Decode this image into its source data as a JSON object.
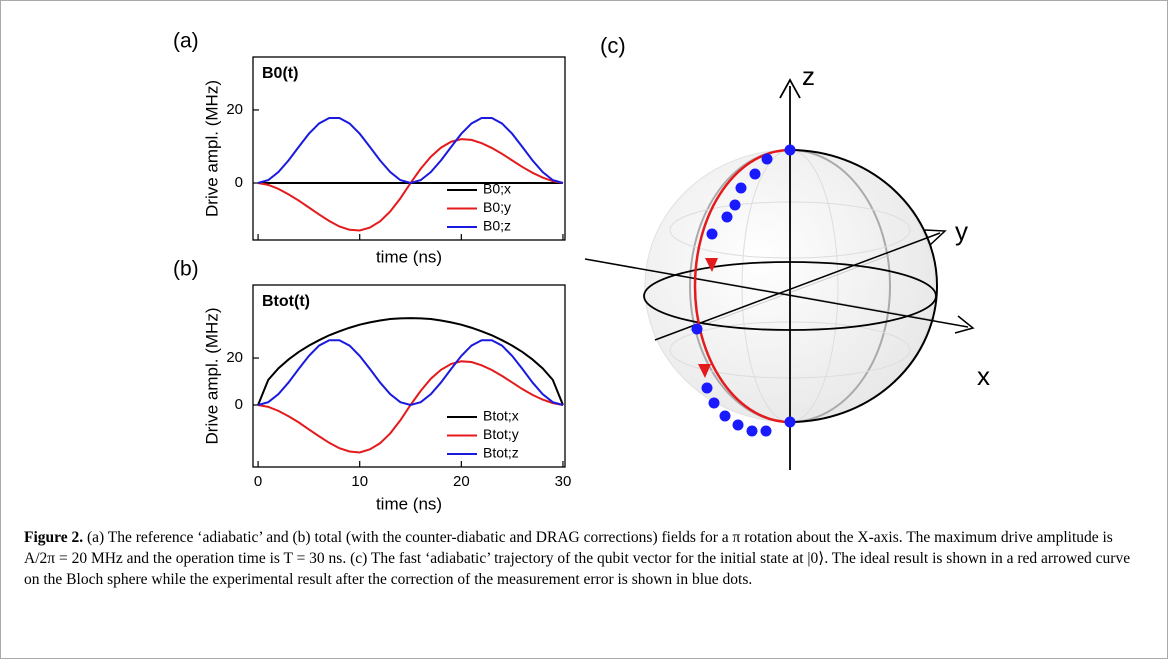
{
  "chart_data": [
    {
      "type": "line",
      "panel_label": "(a)",
      "title": "B0(t)",
      "y_label": "Drive ampl. (MHz)",
      "x_label": "time (ns)",
      "x": [
        0,
        1,
        2,
        3,
        4,
        5,
        6,
        7,
        8,
        9,
        10,
        11,
        12,
        13,
        14,
        15,
        16,
        17,
        18,
        19,
        20,
        21,
        22,
        23,
        24,
        25,
        26,
        27,
        28,
        29,
        30
      ],
      "series": [
        {
          "name": "B0;x",
          "color": "#000000",
          "values": [
            0,
            0,
            0,
            0,
            0,
            0,
            0,
            0,
            0,
            0,
            0,
            0,
            0,
            0,
            0,
            0,
            0,
            0,
            0,
            0,
            0,
            0,
            0,
            0,
            0,
            0,
            0,
            0,
            0,
            0,
            0
          ]
        },
        {
          "name": "B0;y",
          "color": "#e41a1c",
          "values": [
            0,
            -0.5,
            -1.6,
            -3.1,
            -4.8,
            -6.7,
            -8.6,
            -10.4,
            -11.9,
            -12.8,
            -13.0,
            -12.2,
            -10.5,
            -7.8,
            -4.2,
            0,
            3.9,
            7.2,
            9.7,
            11.3,
            12.0,
            11.8,
            10.9,
            9.6,
            8.0,
            6.2,
            4.4,
            2.8,
            1.5,
            0.5,
            0
          ]
        },
        {
          "name": "B0;z",
          "color": "#1a1adf",
          "values": [
            0,
            0.8,
            3.0,
            6.2,
            9.9,
            13.5,
            16.3,
            17.8,
            17.8,
            16.3,
            13.5,
            9.9,
            6.2,
            3.0,
            0.8,
            0,
            0.8,
            3.0,
            6.2,
            9.9,
            13.5,
            16.3,
            17.8,
            17.8,
            16.3,
            13.5,
            9.9,
            6.2,
            3.0,
            0.8,
            0
          ]
        }
      ],
      "xlim": [
        -0.5,
        30.2
      ],
      "xticks": [
        0,
        10,
        20,
        30
      ],
      "xtick_labels": false,
      "ylim": [
        -15.6,
        34.5
      ],
      "yticks": [
        0,
        20
      ]
    },
    {
      "type": "line",
      "panel_label": "(b)",
      "title": "Btot(t)",
      "y_label": "Drive ampl. (MHz)",
      "x_label": "time (ns)",
      "x": [
        0,
        1,
        2,
        3,
        4,
        5,
        6,
        7,
        8,
        9,
        10,
        11,
        12,
        13,
        14,
        15,
        16,
        17,
        18,
        19,
        20,
        21,
        22,
        23,
        24,
        25,
        26,
        27,
        28,
        29,
        30
      ],
      "series": [
        {
          "name": "Btot;x",
          "color": "#000000",
          "values": [
            0,
            10.7,
            15.6,
            19.4,
            22.6,
            25.3,
            27.6,
            29.7,
            31.4,
            32.9,
            34.2,
            35.2,
            36.0,
            36.6,
            36.9,
            37.0,
            36.9,
            36.6,
            36.0,
            35.2,
            34.2,
            32.9,
            31.4,
            29.7,
            27.6,
            25.3,
            22.6,
            19.4,
            15.6,
            10.7,
            0
          ]
        },
        {
          "name": "Btot;y",
          "color": "#e41a1c",
          "values": [
            0,
            -0.8,
            -2.5,
            -4.8,
            -7.4,
            -10.4,
            -13.3,
            -16.1,
            -18.4,
            -19.8,
            -20.2,
            -18.9,
            -16.3,
            -12.1,
            -6.5,
            0,
            6.0,
            11.2,
            15.0,
            17.5,
            18.6,
            18.3,
            16.9,
            14.9,
            12.4,
            9.6,
            6.8,
            4.3,
            2.3,
            0.8,
            0
          ]
        },
        {
          "name": "Btot;z",
          "color": "#1a1adf",
          "values": [
            0,
            1.2,
            4.6,
            9.6,
            15.4,
            20.9,
            25.3,
            27.6,
            27.6,
            25.3,
            20.9,
            15.4,
            9.6,
            4.6,
            1.2,
            0,
            1.2,
            4.6,
            9.6,
            15.4,
            20.9,
            25.3,
            27.6,
            27.6,
            25.3,
            20.9,
            15.4,
            9.6,
            4.6,
            1.2,
            0
          ]
        }
      ],
      "xlim": [
        -0.5,
        30.2
      ],
      "xticks": [
        0,
        10,
        20,
        30
      ],
      "xtick_labels": true,
      "ylim": [
        -26.4,
        51.1
      ],
      "yticks": [
        0,
        20
      ]
    }
  ],
  "bloch": {
    "panel_label": "(c)",
    "axes": {
      "z": "z",
      "y": "y",
      "x": "x"
    }
  },
  "caption": {
    "label": "Figure 2.",
    "text": "(a) The reference ‘adiabatic’ and (b) total (with the counter-diabatic and DRAG corrections) fields for a π rotation about the X-axis. The maximum drive amplitude is A/2π = 20 MHz and the operation time is T = 30 ns. (c) The fast ‘adiabatic’ trajectory of the qubit vector for the initial state at |0⟩. The ideal result is shown in a red arrowed curve on the Bloch sphere while the experimental result after the correction of the measurement error is shown in blue dots."
  }
}
